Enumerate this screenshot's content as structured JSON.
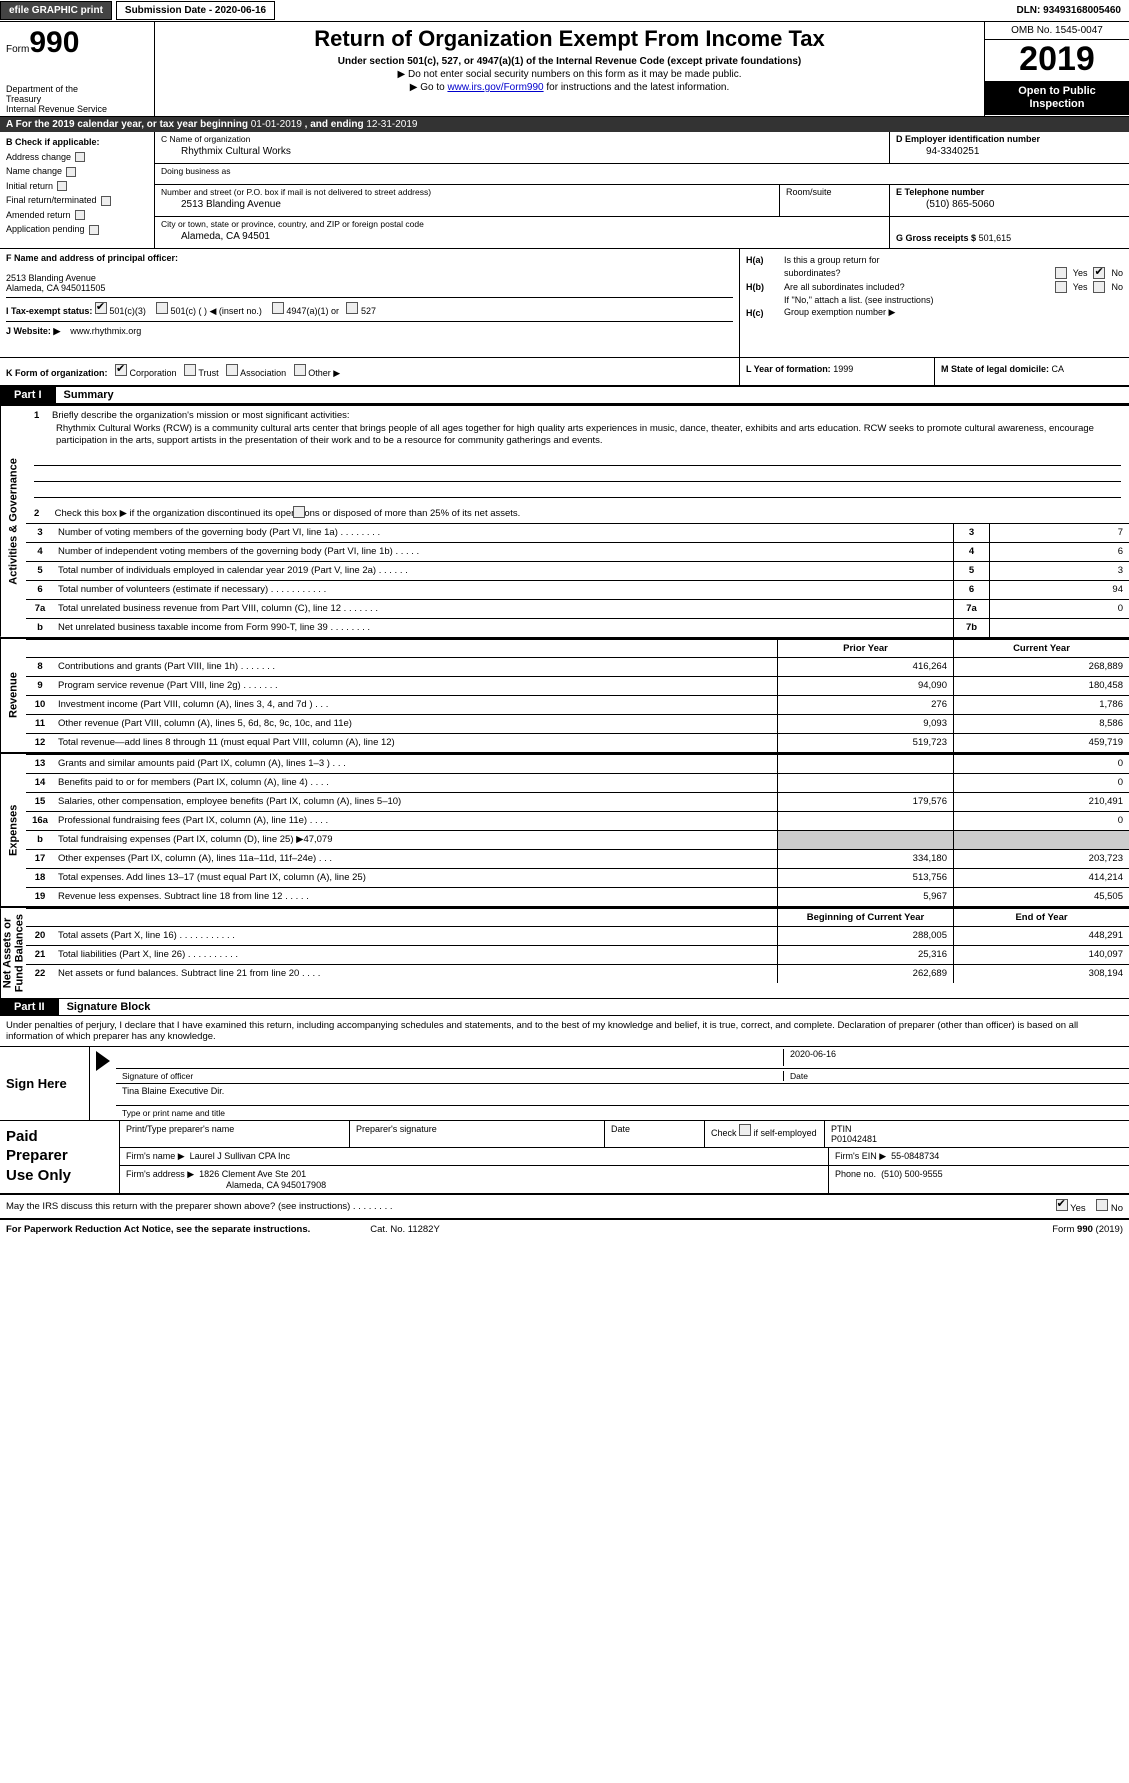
{
  "topbar": {
    "efile_label": "efile GRAPHIC print",
    "submission_label": "Submission Date - 2020-06-16",
    "dln_label": "DLN: 93493168005460"
  },
  "header": {
    "form_prefix": "Form",
    "form_number": "990",
    "dept1": "Department of the",
    "dept2": "Treasury",
    "dept3": "Internal Revenue Service",
    "title": "Return of Organization Exempt From Income Tax",
    "subtitle": "Under section 501(c), 527, or 4947(a)(1) of the Internal Revenue Code (except private foundations)",
    "note1": "▶ Do not enter social security numbers on this form as it may be made public.",
    "note2_pre": "▶ Go to ",
    "note2_link": "www.irs.gov/Form990",
    "note2_post": " for instructions and the latest information.",
    "omb": "OMB No. 1545-0047",
    "year": "2019",
    "open1": "Open to Public",
    "open2": "Inspection"
  },
  "row_a": {
    "pre": "A   For the 2019 calendar year, or tax year beginning ",
    "begin": "01-01-2019",
    "mid": "  , and ending ",
    "end": "12-31-2019"
  },
  "box_b": {
    "header": "B  Check if applicable:",
    "items": [
      "Address change",
      "Name change",
      "Initial return",
      "Final return/terminated",
      "Amended return",
      "Application pending"
    ]
  },
  "box_c": {
    "name_caption": "C Name of organization",
    "name_value": "Rhythmix Cultural Works",
    "dba_caption": "Doing business as",
    "dba_value": "",
    "street_caption": "Number and street (or P.O. box if mail is not delivered to street address)",
    "street_value": "2513 Blanding Avenue",
    "room_caption": "Room/suite",
    "city_caption": "City or town, state or province, country, and ZIP or foreign postal code",
    "city_value": "Alameda, CA   94501"
  },
  "box_d": {
    "caption": "D Employer identification number",
    "value": "94-3340251"
  },
  "box_e": {
    "caption": "E Telephone number",
    "value": "(510) 865-5060"
  },
  "box_g": {
    "caption": "G Gross receipts $",
    "value": "501,615"
  },
  "box_f": {
    "caption": "F  Name and address of principal officer:",
    "line1": "",
    "line2": "2513 Blanding Avenue",
    "line3": "Alameda, CA   945011505"
  },
  "box_h": {
    "a_label": "H(a)",
    "a_text": "Is this a group return for",
    "a_text2": "subordinates?",
    "b_label": "H(b)",
    "b_text": "Are all subordinates included?",
    "b_note": "If \"No,\" attach a list. (see instructions)",
    "c_label": "H(c)",
    "c_text": "Group exemption number ▶",
    "yes": "Yes",
    "no": "No"
  },
  "box_i": {
    "label": "I   Tax-exempt status:",
    "opt1": "501(c)(3)",
    "opt2": "501(c) (   ) ◀ (insert no.)",
    "opt3": "4947(a)(1) or",
    "opt4": "527"
  },
  "box_j": {
    "label": "J   Website: ▶",
    "value": "www.rhythmix.org"
  },
  "box_k": {
    "label": "K Form of organization:",
    "opts": [
      "Corporation",
      "Trust",
      "Association",
      "Other ▶"
    ]
  },
  "box_l": {
    "label": "L Year of formation:",
    "value": "1999"
  },
  "box_m": {
    "label": "M State of legal domicile:",
    "value": "CA"
  },
  "part1": {
    "header": "Part I",
    "title": "Summary"
  },
  "summary": {
    "q1_label": "1",
    "q1_text": "Briefly describe the organization's mission or most significant activities:",
    "mission": "Rhythmix Cultural Works (RCW) is a community cultural arts center that brings people of all ages together for high quality arts experiences in music, dance, theater, exhibits and arts education. RCW seeks to promote cultural awareness, encourage participation in the arts, support artists in the presentation of their work and to be a resource for community gatherings and events.",
    "q2_label": "2",
    "q2_text": "Check this box ▶        if the organization discontinued its operations or disposed of more than 25% of its net assets.",
    "lines_small": [
      {
        "n": "3",
        "t": "Number of voting members of the governing body (Part VI, line 1a)   .     .     .     .     .     .     .     .",
        "box": "3",
        "v": "7"
      },
      {
        "n": "4",
        "t": "Number of independent voting members of the governing body (Part VI, line 1b)   .     .     .     .     .",
        "box": "4",
        "v": "6"
      },
      {
        "n": "5",
        "t": "Total number of individuals employed in calendar year 2019 (Part V, line 2a)   .     .     .     .     .     .",
        "box": "5",
        "v": "3"
      },
      {
        "n": "6",
        "t": "Total number of volunteers (estimate if necessary)   .     .     .     .     .     .     .     .     .     .     .",
        "box": "6",
        "v": "94"
      },
      {
        "n": "7a",
        "t": "Total unrelated business revenue from Part VIII, column (C), line 12   .     .     .     .     .     .     .",
        "box": "7a",
        "v": "0"
      },
      {
        "n": "b",
        "t": "Net unrelated business taxable income from Form 990-T, line 39   .     .     .     .     .     .     .     .",
        "box": "7b",
        "v": ""
      }
    ]
  },
  "two_col_heads": {
    "prior": "Prior Year",
    "current": "Current Year",
    "begin": "Beginning of Current Year",
    "end": "End of Year"
  },
  "groups": {
    "gov_label": "Activities & Governance",
    "rev_label": "Revenue",
    "exp_label": "Expenses",
    "net_label": "Net Assets or\nFund Balances"
  },
  "revenue": [
    {
      "n": "8",
      "t": "Contributions and grants (Part VIII, line 1h)   .     .     .     .     .     .     .",
      "p": "416,264",
      "c": "268,889"
    },
    {
      "n": "9",
      "t": "Program service revenue (Part VIII, line 2g)   .     .     .     .     .     .     .",
      "p": "94,090",
      "c": "180,458"
    },
    {
      "n": "10",
      "t": "Investment income (Part VIII, column (A), lines 3, 4, and 7d )   .     .     .",
      "p": "276",
      "c": "1,786"
    },
    {
      "n": "11",
      "t": "Other revenue (Part VIII, column (A), lines 5, 6d, 8c, 9c, 10c, and 11e)",
      "p": "9,093",
      "c": "8,586"
    },
    {
      "n": "12",
      "t": "Total revenue—add lines 8 through 11 (must equal Part VIII, column (A), line 12)",
      "p": "519,723",
      "c": "459,719"
    }
  ],
  "expenses": [
    {
      "n": "13",
      "t": "Grants and similar amounts paid (Part IX, column (A), lines 1–3 )   .     .     .",
      "p": "",
      "c": "0"
    },
    {
      "n": "14",
      "t": "Benefits paid to or for members (Part IX, column (A), line 4)   .     .     .     .",
      "p": "",
      "c": "0"
    },
    {
      "n": "15",
      "t": "Salaries, other compensation, employee benefits (Part IX, column (A), lines 5–10)",
      "p": "179,576",
      "c": "210,491"
    },
    {
      "n": "16a",
      "t": "Professional fundraising fees (Part IX, column (A), line 11e)   .     .     .     .",
      "p": "",
      "c": "0"
    },
    {
      "n": "b",
      "t": "Total fundraising expenses (Part IX, column (D), line 25) ▶47,079",
      "p": "GREY",
      "c": "GREY"
    },
    {
      "n": "17",
      "t": "Other expenses (Part IX, column (A), lines 11a–11d, 11f–24e)   .     .     .",
      "p": "334,180",
      "c": "203,723"
    },
    {
      "n": "18",
      "t": "Total expenses. Add lines 13–17 (must equal Part IX, column (A), line 25)",
      "p": "513,756",
      "c": "414,214"
    },
    {
      "n": "19",
      "t": "Revenue less expenses. Subtract line 18 from line 12   .     .     .     .     .",
      "p": "5,967",
      "c": "45,505"
    }
  ],
  "netassets": [
    {
      "n": "20",
      "t": "Total assets (Part X, line 16)   .     .     .     .     .     .     .     .     .     .     .",
      "p": "288,005",
      "c": "448,291"
    },
    {
      "n": "21",
      "t": "Total liabilities (Part X, line 26)   .     .     .     .     .     .     .     .     .     .",
      "p": "25,316",
      "c": "140,097"
    },
    {
      "n": "22",
      "t": "Net assets or fund balances. Subtract line 21 from line 20   .     .     .     .",
      "p": "262,689",
      "c": "308,194"
    }
  ],
  "part2": {
    "header": "Part II",
    "title": "Signature Block"
  },
  "sig": {
    "intro": "Under penalties of perjury, I declare that I have examined this return, including accompanying schedules and statements, and to the best of my knowledge and belief, it is true, correct, and complete. Declaration of preparer (other than officer) is based on all information of which preparer has any knowledge.",
    "sign_here": "Sign Here",
    "sig_officer_caption": "Signature of officer",
    "date_caption": "Date",
    "date_value": "2020-06-16",
    "name_title_value": "Tina Blaine  Executive Dir.",
    "name_title_caption": "Type or print name and title"
  },
  "paid": {
    "label1": "Paid",
    "label2": "Preparer",
    "label3": "Use Only",
    "h1": "Print/Type preparer's name",
    "h2": "Preparer's signature",
    "h3": "Date",
    "h4_pre": "Check",
    "h4_post": "if self-employed",
    "h5": "PTIN",
    "ptin": "P01042481",
    "firm_name_label": "Firm's name      ▶",
    "firm_name": "Laurel J Sullivan CPA Inc",
    "firm_ein_label": "Firm's EIN ▶",
    "firm_ein": "55-0848734",
    "firm_addr_label": "Firm's address  ▶",
    "firm_addr1": "1826 Clement Ave Ste 201",
    "firm_addr2": "Alameda, CA   945017908",
    "phone_label": "Phone no.",
    "phone": "(510) 500-9555"
  },
  "footer": {
    "discuss": "May the IRS discuss this return with the preparer shown above? (see instructions)   .     .     .     .     .     .     .     .",
    "yes": "Yes",
    "no": "No",
    "paperwork": "For Paperwork Reduction Act Notice, see the separate instructions.",
    "catno": "Cat. No. 11282Y",
    "formno": "Form 990 (2019)"
  }
}
